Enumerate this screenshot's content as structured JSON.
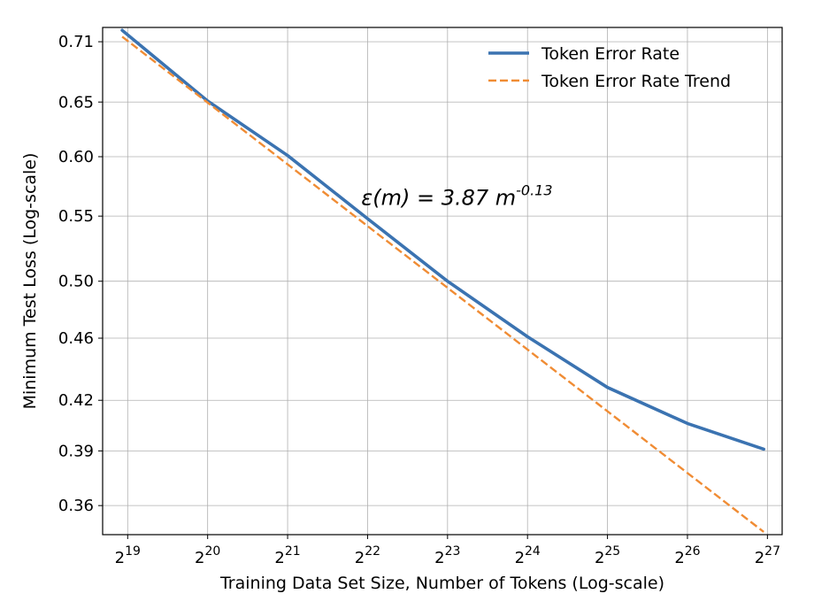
{
  "chart_data": {
    "type": "line",
    "xscale": "log2",
    "yscale": "log",
    "xlabel": "Training Data Set Size, Number of Tokens (Log-scale)",
    "ylabel": "Minimum Test Loss (Log-scale)",
    "xlim": [
      422000,
      152500000
    ],
    "ylim": [
      0.345,
      0.725
    ],
    "x_ticks": [
      {
        "value": 524288,
        "base": "2",
        "exp": "19"
      },
      {
        "value": 1048576,
        "base": "2",
        "exp": "20"
      },
      {
        "value": 2097152,
        "base": "2",
        "exp": "21"
      },
      {
        "value": 4194304,
        "base": "2",
        "exp": "22"
      },
      {
        "value": 8388608,
        "base": "2",
        "exp": "23"
      },
      {
        "value": 16777216,
        "base": "2",
        "exp": "24"
      },
      {
        "value": 33554432,
        "base": "2",
        "exp": "25"
      },
      {
        "value": 67108864,
        "base": "2",
        "exp": "26"
      },
      {
        "value": 134217728,
        "base": "2",
        "exp": "27"
      }
    ],
    "y_ticks": [
      {
        "value": 0.71,
        "label": "0.71"
      },
      {
        "value": 0.65,
        "label": "0.65"
      },
      {
        "value": 0.6,
        "label": "0.60"
      },
      {
        "value": 0.55,
        "label": "0.55"
      },
      {
        "value": 0.5,
        "label": "0.50"
      },
      {
        "value": 0.46,
        "label": "0.46"
      },
      {
        "value": 0.42,
        "label": "0.42"
      },
      {
        "value": 0.39,
        "label": "0.39"
      },
      {
        "value": 0.36,
        "label": "0.36"
      }
    ],
    "grid": true,
    "legend_position": "top-right",
    "series": [
      {
        "name": "Token Error Rate",
        "color": "#3b73b1",
        "style": "solid",
        "x": [
          500000,
          1048576,
          2097152,
          4194304,
          8388608,
          16777216,
          33554432,
          67108864,
          130000000
        ],
        "y": [
          0.722,
          0.651,
          0.601,
          0.548,
          0.5,
          0.461,
          0.428,
          0.406,
          0.391
        ]
      },
      {
        "name": "Token Error Rate Trend",
        "color": "#f08c34",
        "style": "dashed",
        "x": [
          500000,
          130000000
        ],
        "y": [
          0.7153,
          0.3464
        ]
      }
    ],
    "annotations": [
      {
        "text": "ε(m) = 3.87 m",
        "sup": "-0.13",
        "x": 4000000,
        "y": 0.565
      }
    ]
  }
}
